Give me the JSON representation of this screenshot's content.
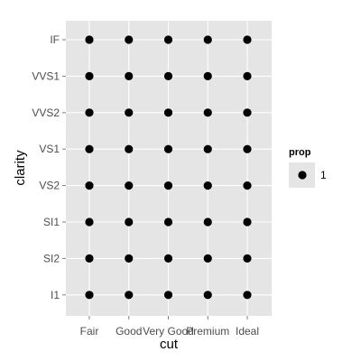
{
  "chart_data": {
    "type": "scatter",
    "title": "",
    "xlabel": "cut",
    "ylabel": "clarity",
    "x_categories": [
      "Fair",
      "Good",
      "Very Good",
      "Premium",
      "Ideal"
    ],
    "y_categories": [
      "I1",
      "SI2",
      "SI1",
      "VS2",
      "VS1",
      "VVS2",
      "VVS1",
      "IF"
    ],
    "points": [
      {
        "x": "Fair",
        "y": "I1",
        "prop": 1
      },
      {
        "x": "Good",
        "y": "I1",
        "prop": 1
      },
      {
        "x": "Very Good",
        "y": "I1",
        "prop": 1
      },
      {
        "x": "Premium",
        "y": "I1",
        "prop": 1
      },
      {
        "x": "Ideal",
        "y": "I1",
        "prop": 1
      },
      {
        "x": "Fair",
        "y": "SI2",
        "prop": 1
      },
      {
        "x": "Good",
        "y": "SI2",
        "prop": 1
      },
      {
        "x": "Very Good",
        "y": "SI2",
        "prop": 1
      },
      {
        "x": "Premium",
        "y": "SI2",
        "prop": 1
      },
      {
        "x": "Ideal",
        "y": "SI2",
        "prop": 1
      },
      {
        "x": "Fair",
        "y": "SI1",
        "prop": 1
      },
      {
        "x": "Good",
        "y": "SI1",
        "prop": 1
      },
      {
        "x": "Very Good",
        "y": "SI1",
        "prop": 1
      },
      {
        "x": "Premium",
        "y": "SI1",
        "prop": 1
      },
      {
        "x": "Ideal",
        "y": "SI1",
        "prop": 1
      },
      {
        "x": "Fair",
        "y": "VS2",
        "prop": 1
      },
      {
        "x": "Good",
        "y": "VS2",
        "prop": 1
      },
      {
        "x": "Very Good",
        "y": "VS2",
        "prop": 1
      },
      {
        "x": "Premium",
        "y": "VS2",
        "prop": 1
      },
      {
        "x": "Ideal",
        "y": "VS2",
        "prop": 1
      },
      {
        "x": "Fair",
        "y": "VS1",
        "prop": 1
      },
      {
        "x": "Good",
        "y": "VS1",
        "prop": 1
      },
      {
        "x": "Very Good",
        "y": "VS1",
        "prop": 1
      },
      {
        "x": "Premium",
        "y": "VS1",
        "prop": 1
      },
      {
        "x": "Ideal",
        "y": "VS1",
        "prop": 1
      },
      {
        "x": "Fair",
        "y": "VVS2",
        "prop": 1
      },
      {
        "x": "Good",
        "y": "VVS2",
        "prop": 1
      },
      {
        "x": "Very Good",
        "y": "VVS2",
        "prop": 1
      },
      {
        "x": "Premium",
        "y": "VVS2",
        "prop": 1
      },
      {
        "x": "Ideal",
        "y": "VVS2",
        "prop": 1
      },
      {
        "x": "Fair",
        "y": "VVS1",
        "prop": 1
      },
      {
        "x": "Good",
        "y": "VVS1",
        "prop": 1
      },
      {
        "x": "Very Good",
        "y": "VVS1",
        "prop": 1
      },
      {
        "x": "Premium",
        "y": "VVS1",
        "prop": 1
      },
      {
        "x": "Ideal",
        "y": "VVS1",
        "prop": 1
      },
      {
        "x": "Fair",
        "y": "IF",
        "prop": 1
      },
      {
        "x": "Good",
        "y": "IF",
        "prop": 1
      },
      {
        "x": "Very Good",
        "y": "IF",
        "prop": 1
      },
      {
        "x": "Premium",
        "y": "IF",
        "prop": 1
      },
      {
        "x": "Ideal",
        "y": "IF",
        "prop": 1
      }
    ],
    "legend": {
      "title": "prop",
      "entries": [
        {
          "label": "1",
          "symbol": "filled-circle"
        }
      ],
      "placement": "right"
    },
    "grid": true,
    "colors": {
      "panel_background": "#e5e5e5",
      "grid_line": "#ffffff",
      "point": "#000000",
      "legend_key_background": "#e5e5e5",
      "tick_label": "#4d4d4d",
      "axis_title": "#000000"
    }
  }
}
